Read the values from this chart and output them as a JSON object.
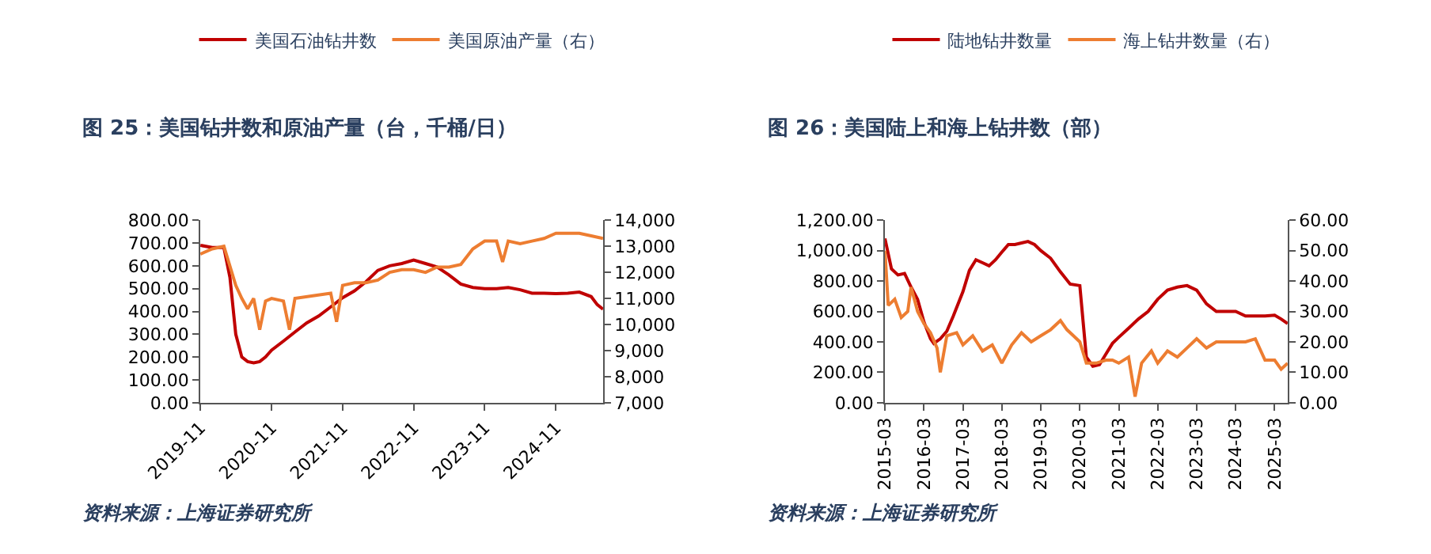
{
  "chart_data": [
    {
      "type": "line",
      "title": "图 25：美国钻井数和原油产量（台，千桶/日）",
      "legend": "top",
      "grid": false,
      "marker": "none",
      "line_style": "solid",
      "xlim": [
        "2019-11",
        "2025-07"
      ],
      "xticks": [
        "2019-11",
        "2020-11",
        "2021-11",
        "2022-11",
        "2023-11",
        "2024-11"
      ],
      "ylim": [
        0,
        800
      ],
      "yticks": [
        {
          "value": 0,
          "label": "0.00"
        },
        {
          "value": 100,
          "label": "100.00"
        },
        {
          "value": 200,
          "label": "200.00"
        },
        {
          "value": 300,
          "label": "300.00"
        },
        {
          "value": 400,
          "label": "400.00"
        },
        {
          "value": 500,
          "label": "500.00"
        },
        {
          "value": 600,
          "label": "600.00"
        },
        {
          "value": 700,
          "label": "700.00"
        },
        {
          "value": 800,
          "label": "800.00"
        }
      ],
      "y2lim": [
        7000,
        14000
      ],
      "y2ticks": [
        {
          "value": 7000,
          "label": "7,000"
        },
        {
          "value": 8000,
          "label": "8,000"
        },
        {
          "value": 9000,
          "label": "9,000"
        },
        {
          "value": 10000,
          "label": "10,000"
        },
        {
          "value": 11000,
          "label": "11,000"
        },
        {
          "value": 12000,
          "label": "12,000"
        },
        {
          "value": 13000,
          "label": "13,000"
        },
        {
          "value": 14000,
          "label": "14,000"
        }
      ],
      "annotations": [
        "资料来源：上海证券研究所"
      ],
      "series": [
        {
          "name": "美国石油钻井数",
          "color": "#c00000",
          "x": [
            "2019-11",
            "2020-01",
            "2020-03",
            "2020-04",
            "2020-05",
            "2020-06",
            "2020-07",
            "2020-08",
            "2020-09",
            "2020-10",
            "2020-11",
            "2021-01",
            "2021-03",
            "2021-05",
            "2021-07",
            "2021-09",
            "2021-11",
            "2022-01",
            "2022-03",
            "2022-05",
            "2022-07",
            "2022-09",
            "2022-11",
            "2023-01",
            "2023-03",
            "2023-05",
            "2023-07",
            "2023-09",
            "2023-11",
            "2024-01",
            "2024-03",
            "2024-05",
            "2024-07",
            "2024-09",
            "2024-11",
            "2025-01",
            "2025-03",
            "2025-05",
            "2025-06",
            "2025-07"
          ],
          "values": [
            690,
            680,
            680,
            550,
            300,
            200,
            180,
            175,
            180,
            200,
            230,
            270,
            310,
            350,
            380,
            420,
            460,
            490,
            530,
            580,
            600,
            610,
            625,
            610,
            595,
            560,
            520,
            505,
            500,
            500,
            505,
            495,
            480,
            480,
            478,
            480,
            485,
            465,
            430,
            410
          ]
        },
        {
          "name": "美国原油产量（右）",
          "color": "#ed7d31",
          "axis": "y2",
          "x": [
            "2019-11",
            "2020-01",
            "2020-03",
            "2020-05",
            "2020-06",
            "2020-07",
            "2020-08",
            "2020-09",
            "2020-10",
            "2020-11",
            "2021-01",
            "2021-02",
            "2021-03",
            "2021-06",
            "2021-09",
            "2021-10",
            "2021-11",
            "2022-01",
            "2022-03",
            "2022-05",
            "2022-07",
            "2022-09",
            "2022-11",
            "2023-01",
            "2023-03",
            "2023-05",
            "2023-07",
            "2023-09",
            "2023-11",
            "2024-01",
            "2024-02",
            "2024-03",
            "2024-05",
            "2024-07",
            "2024-09",
            "2024-11",
            "2025-01",
            "2025-03",
            "2025-05",
            "2025-07"
          ],
          "values": [
            12700,
            12900,
            13000,
            11500,
            11000,
            10600,
            11000,
            9800,
            10900,
            11000,
            10900,
            9800,
            11000,
            11100,
            11200,
            10100,
            11500,
            11600,
            11600,
            11700,
            12000,
            12100,
            12100,
            12000,
            12200,
            12200,
            12300,
            12900,
            13200,
            13200,
            12400,
            13200,
            13100,
            13200,
            13300,
            13500,
            13500,
            13500,
            13400,
            13300
          ]
        }
      ]
    },
    {
      "type": "line",
      "title": "图 26：美国陆上和海上钻井数（部）",
      "legend": "top",
      "grid": false,
      "marker": "none",
      "line_style": "solid",
      "xlim": [
        "2015-03",
        "2025-07"
      ],
      "xticks": [
        "2015-03",
        "2016-03",
        "2017-03",
        "2018-03",
        "2019-03",
        "2020-03",
        "2021-03",
        "2022-03",
        "2023-03",
        "2024-03",
        "2025-03"
      ],
      "ylim": [
        0,
        1200
      ],
      "yticks": [
        {
          "value": 0,
          "label": "0.00"
        },
        {
          "value": 200,
          "label": "200.00"
        },
        {
          "value": 400,
          "label": "400.00"
        },
        {
          "value": 600,
          "label": "600.00"
        },
        {
          "value": 800,
          "label": "800.00"
        },
        {
          "value": 1000,
          "label": "1,000.00"
        },
        {
          "value": 1200,
          "label": "1,200.00"
        }
      ],
      "y2lim": [
        0,
        60
      ],
      "y2ticks": [
        {
          "value": 0,
          "label": "0.00"
        },
        {
          "value": 10,
          "label": "10.00"
        },
        {
          "value": 20,
          "label": "20.00"
        },
        {
          "value": 30,
          "label": "30.00"
        },
        {
          "value": 40,
          "label": "40.00"
        },
        {
          "value": 50,
          "label": "50.00"
        },
        {
          "value": 60,
          "label": "60.00"
        }
      ],
      "annotations": [
        "资料来源：上海证券研究所"
      ],
      "series": [
        {
          "name": "陆地钻井数量",
          "color": "#c00000",
          "x": [
            "2015-03",
            "2015-05",
            "2015-07",
            "2015-09",
            "2015-11",
            "2016-01",
            "2016-03",
            "2016-05",
            "2016-06",
            "2016-08",
            "2016-10",
            "2016-12",
            "2017-03",
            "2017-05",
            "2017-07",
            "2017-09",
            "2017-11",
            "2018-01",
            "2018-03",
            "2018-05",
            "2018-07",
            "2018-09",
            "2018-11",
            "2019-01",
            "2019-03",
            "2019-06",
            "2019-09",
            "2019-12",
            "2020-03",
            "2020-04",
            "2020-05",
            "2020-07",
            "2020-09",
            "2020-11",
            "2021-01",
            "2021-03",
            "2021-06",
            "2021-09",
            "2021-12",
            "2022-03",
            "2022-06",
            "2022-09",
            "2022-12",
            "2023-03",
            "2023-06",
            "2023-09",
            "2024-01",
            "2024-03",
            "2024-06",
            "2024-09",
            "2024-12",
            "2025-03",
            "2025-05",
            "2025-07"
          ],
          "values": [
            1080,
            880,
            840,
            850,
            760,
            680,
            530,
            420,
            390,
            420,
            470,
            570,
            730,
            870,
            940,
            920,
            900,
            940,
            990,
            1040,
            1040,
            1050,
            1060,
            1040,
            1000,
            950,
            860,
            780,
            770,
            530,
            300,
            240,
            250,
            320,
            390,
            430,
            490,
            550,
            600,
            680,
            740,
            760,
            770,
            740,
            650,
            600,
            600,
            600,
            570,
            570,
            570,
            575,
            550,
            520
          ]
        },
        {
          "name": "海上钻井数量（右）",
          "color": "#ed7d31",
          "axis": "y2",
          "x": [
            "2015-03",
            "2015-04",
            "2015-06",
            "2015-08",
            "2015-10",
            "2015-11",
            "2016-01",
            "2016-03",
            "2016-05",
            "2016-07",
            "2016-08",
            "2016-10",
            "2017-01",
            "2017-03",
            "2017-06",
            "2017-09",
            "2017-12",
            "2018-03",
            "2018-06",
            "2018-09",
            "2018-12",
            "2019-03",
            "2019-06",
            "2019-09",
            "2019-11",
            "2020-01",
            "2020-03",
            "2020-05",
            "2020-08",
            "2020-11",
            "2021-01",
            "2021-03",
            "2021-06",
            "2021-08",
            "2021-10",
            "2022-01",
            "2022-03",
            "2022-06",
            "2022-09",
            "2022-12",
            "2023-03",
            "2023-06",
            "2023-09",
            "2023-12",
            "2024-03",
            "2024-06",
            "2024-09",
            "2024-12",
            "2025-03",
            "2025-05",
            "2025-07"
          ],
          "values": [
            50,
            32,
            34,
            28,
            30,
            38,
            30,
            26,
            23,
            18,
            10,
            22,
            23,
            19,
            22,
            17,
            19,
            13,
            19,
            23,
            20,
            22,
            24,
            27,
            24,
            22,
            20,
            13,
            13,
            14,
            14,
            13,
            15,
            2,
            13,
            17,
            13,
            17,
            15,
            18,
            21,
            18,
            20,
            20,
            20,
            20,
            21,
            14,
            14,
            11,
            13
          ]
        }
      ]
    }
  ]
}
